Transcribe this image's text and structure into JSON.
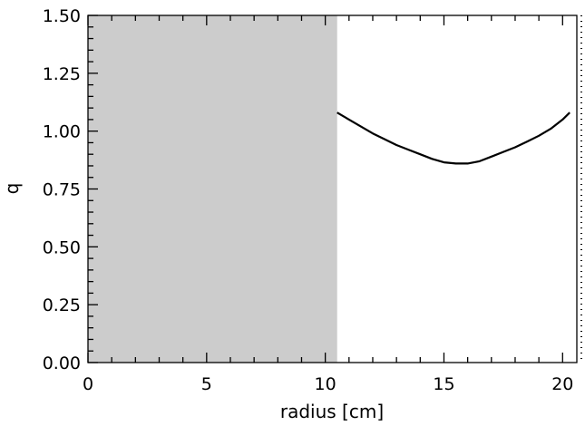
{
  "chart_data": {
    "type": "line",
    "title": "",
    "xlabel": "radius [cm]",
    "ylabel": "q",
    "xlim": [
      0,
      20.6
    ],
    "ylim": [
      0.0,
      1.5
    ],
    "x_ticks": [
      0,
      5,
      10,
      15,
      20
    ],
    "x_tick_labels": [
      "0",
      "5",
      "10",
      "15",
      "20"
    ],
    "y_ticks": [
      0.0,
      0.25,
      0.5,
      0.75,
      1.0,
      1.25,
      1.5
    ],
    "y_tick_labels": [
      "0.00",
      "0.25",
      "0.50",
      "0.75",
      "1.00",
      "1.25",
      "1.50"
    ],
    "grid": false,
    "shaded_region": {
      "x_from": 0,
      "x_to": 10.5,
      "color": "#cccccc"
    },
    "line_color": "#000000",
    "series": [
      {
        "x": [
          10.5,
          11.0,
          11.5,
          12.0,
          12.5,
          13.0,
          13.5,
          14.0,
          14.5,
          15.0,
          15.5,
          16.0,
          16.5,
          17.0,
          17.5,
          18.0,
          18.5,
          19.0,
          19.5,
          20.0,
          20.3
        ],
        "y": [
          1.08,
          1.05,
          1.02,
          0.99,
          0.965,
          0.94,
          0.92,
          0.9,
          0.88,
          0.865,
          0.86,
          0.86,
          0.87,
          0.89,
          0.91,
          0.93,
          0.955,
          0.98,
          1.01,
          1.05,
          1.08
        ]
      }
    ]
  }
}
